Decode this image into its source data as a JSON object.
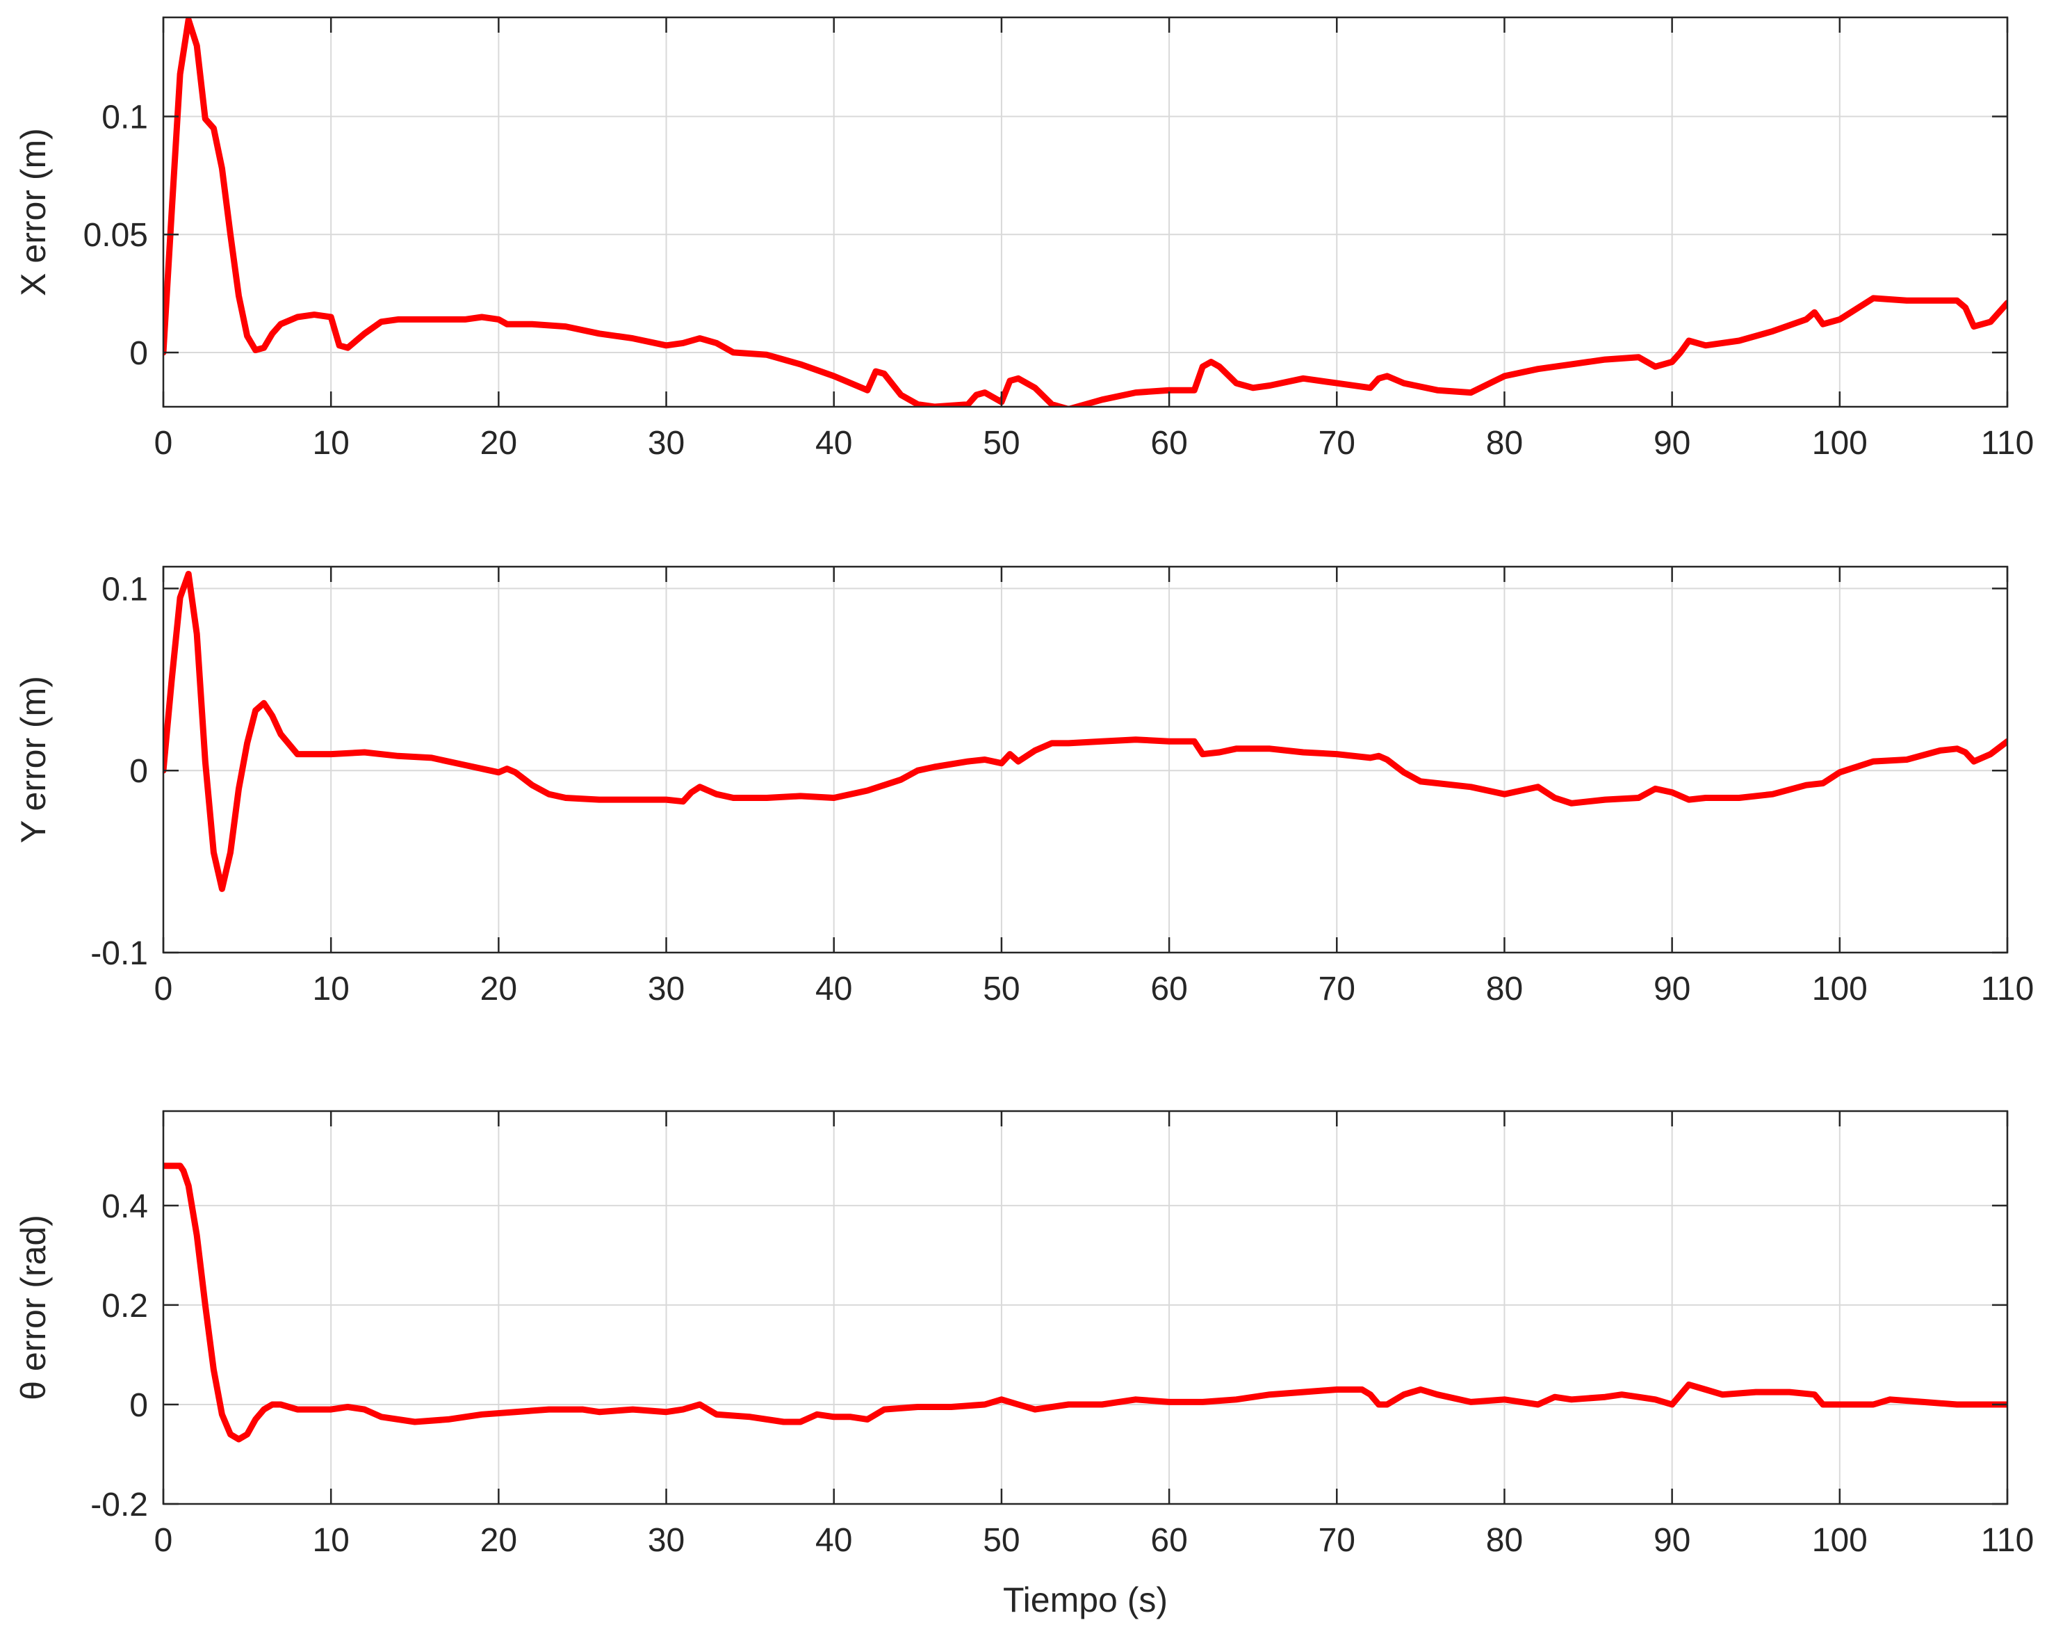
{
  "chart_data": [
    {
      "type": "line",
      "title": "",
      "xlabel": "",
      "ylabel": "X error (m)",
      "xlim": [
        0,
        110
      ],
      "ylim": [
        -0.023,
        0.142
      ],
      "xticks": [
        0,
        10,
        20,
        30,
        40,
        50,
        60,
        70,
        80,
        90,
        100,
        110
      ],
      "yticks": [
        0,
        0.05,
        0.1
      ],
      "ytick_labels": [
        "0",
        "0.05",
        "0.1"
      ],
      "grid": true,
      "color": "#ff0000",
      "series": [
        {
          "x": [
            0,
            0.5,
            1,
            1.5,
            2,
            2.5,
            3,
            3.5,
            4,
            4.5,
            5,
            5.5,
            6,
            6.5,
            7,
            8,
            9,
            10,
            10.5,
            11,
            12,
            13,
            14,
            16,
            18,
            19,
            20,
            20.5,
            22,
            24,
            26,
            28,
            30,
            31,
            32,
            33,
            34,
            36,
            38,
            40,
            42,
            42.5,
            43,
            44,
            45,
            46,
            48,
            48.5,
            49,
            50,
            50.5,
            51,
            52,
            53,
            54,
            56,
            58,
            60,
            61.5,
            62,
            62.5,
            63,
            64,
            65,
            66,
            68,
            70,
            72,
            72.5,
            73,
            74,
            76,
            78,
            80,
            82,
            84,
            86,
            88,
            89,
            90,
            90.5,
            91,
            92,
            94,
            96,
            98,
            98.5,
            99,
            100,
            102,
            104,
            106,
            107,
            107.5,
            108,
            109,
            110
          ],
          "y": [
            0,
            0.06,
            0.118,
            0.141,
            0.13,
            0.099,
            0.095,
            0.078,
            0.05,
            0.024,
            0.007,
            0.001,
            0.002,
            0.008,
            0.012,
            0.015,
            0.016,
            0.015,
            0.003,
            0.002,
            0.008,
            0.013,
            0.014,
            0.014,
            0.014,
            0.015,
            0.014,
            0.012,
            0.012,
            0.011,
            0.008,
            0.006,
            0.003,
            0.004,
            0.006,
            0.004,
            0.0,
            -0.001,
            -0.005,
            -0.01,
            -0.016,
            -0.008,
            -0.009,
            -0.018,
            -0.022,
            -0.023,
            -0.022,
            -0.018,
            -0.017,
            -0.021,
            -0.012,
            -0.011,
            -0.015,
            -0.022,
            -0.024,
            -0.02,
            -0.017,
            -0.016,
            -0.016,
            -0.006,
            -0.004,
            -0.006,
            -0.013,
            -0.015,
            -0.014,
            -0.011,
            -0.013,
            -0.015,
            -0.011,
            -0.01,
            -0.013,
            -0.016,
            -0.017,
            -0.01,
            -0.007,
            -0.005,
            -0.003,
            -0.002,
            -0.006,
            -0.004,
            0.0,
            0.005,
            0.003,
            0.005,
            0.009,
            0.014,
            0.017,
            0.012,
            0.014,
            0.023,
            0.022,
            0.022,
            0.022,
            0.019,
            0.011,
            0.013,
            0.021
          ]
        }
      ]
    },
    {
      "type": "line",
      "title": "",
      "xlabel": "",
      "ylabel": "Y error (m)",
      "xlim": [
        0,
        110
      ],
      "ylim": [
        -0.1,
        0.112
      ],
      "xticks": [
        0,
        10,
        20,
        30,
        40,
        50,
        60,
        70,
        80,
        90,
        100,
        110
      ],
      "yticks": [
        -0.1,
        0,
        0.1
      ],
      "ytick_labels": [
        "-0.1",
        "0",
        "0.1"
      ],
      "grid": true,
      "color": "#ff0000",
      "series": [
        {
          "x": [
            0,
            0.5,
            1,
            1.5,
            2,
            2.5,
            3,
            3.5,
            4,
            4.5,
            5,
            5.5,
            6,
            6.5,
            7,
            8,
            9,
            10,
            12,
            14,
            16,
            18,
            20,
            20.5,
            21,
            22,
            23,
            24,
            26,
            28,
            30,
            31,
            31.5,
            32,
            33,
            34,
            36,
            38,
            40,
            42,
            44,
            45,
            46,
            48,
            49,
            50,
            50.5,
            51,
            52,
            53,
            54,
            56,
            58,
            60,
            61.5,
            62,
            63,
            64,
            66,
            68,
            70,
            72,
            72.5,
            73,
            74,
            75,
            76,
            78,
            80,
            81,
            82,
            83,
            84,
            86,
            88,
            89,
            90,
            91,
            92,
            94,
            96,
            98,
            99,
            100,
            102,
            104,
            106,
            107,
            107.5,
            108,
            109,
            110
          ],
          "y": [
            0,
            0.05,
            0.095,
            0.108,
            0.075,
            0.005,
            -0.045,
            -0.065,
            -0.045,
            -0.01,
            0.015,
            0.033,
            0.037,
            0.03,
            0.02,
            0.009,
            0.009,
            0.009,
            0.01,
            0.008,
            0.007,
            0.003,
            -0.001,
            0.001,
            -0.001,
            -0.008,
            -0.013,
            -0.015,
            -0.016,
            -0.016,
            -0.016,
            -0.017,
            -0.012,
            -0.009,
            -0.013,
            -0.015,
            -0.015,
            -0.014,
            -0.015,
            -0.011,
            -0.005,
            0.0,
            0.002,
            0.005,
            0.006,
            0.004,
            0.009,
            0.005,
            0.011,
            0.015,
            0.015,
            0.016,
            0.017,
            0.016,
            0.016,
            0.009,
            0.01,
            0.012,
            0.012,
            0.01,
            0.009,
            0.007,
            0.008,
            0.006,
            -0.001,
            -0.006,
            -0.007,
            -0.009,
            -0.013,
            -0.011,
            -0.009,
            -0.015,
            -0.018,
            -0.016,
            -0.015,
            -0.01,
            -0.012,
            -0.016,
            -0.015,
            -0.015,
            -0.013,
            -0.008,
            -0.007,
            -0.001,
            0.005,
            0.006,
            0.011,
            0.012,
            0.01,
            0.005,
            0.009,
            0.016
          ]
        }
      ]
    },
    {
      "type": "line",
      "title": "",
      "xlabel": "Tiempo (s)",
      "ylabel": "θ error (rad)",
      "xlim": [
        0,
        110
      ],
      "ylim": [
        -0.2,
        0.59
      ],
      "xticks": [
        0,
        10,
        20,
        30,
        40,
        50,
        60,
        70,
        80,
        90,
        100,
        110
      ],
      "yticks": [
        -0.2,
        0,
        0.2,
        0.4
      ],
      "ytick_labels": [
        "-0.2",
        "0",
        "0.2",
        "0.4"
      ],
      "grid": true,
      "color": "#ff0000",
      "series": [
        {
          "x": [
            0,
            0.5,
            1,
            1.2,
            1.5,
            2,
            2.5,
            3,
            3.5,
            4,
            4.5,
            5,
            5.5,
            6,
            6.5,
            7,
            8,
            9,
            10,
            11,
            12,
            13,
            15,
            17,
            19,
            21,
            23,
            25,
            26,
            28,
            30,
            31,
            32,
            33,
            35,
            37,
            38,
            39,
            40,
            41,
            42,
            43,
            45,
            47,
            49,
            50,
            51,
            52,
            54,
            56,
            58,
            60,
            62,
            64,
            66,
            68,
            70,
            71.5,
            72,
            72.5,
            73,
            74,
            75,
            76,
            78,
            80,
            82,
            83,
            84,
            86,
            87,
            88,
            89,
            90,
            91,
            92,
            93,
            95,
            97,
            98.5,
            99,
            100,
            102,
            103,
            105,
            107,
            110
          ],
          "y": [
            0.48,
            0.48,
            0.48,
            0.47,
            0.44,
            0.34,
            0.2,
            0.07,
            -0.02,
            -0.06,
            -0.07,
            -0.06,
            -0.03,
            -0.01,
            0.0,
            0.0,
            -0.01,
            -0.01,
            -0.01,
            -0.005,
            -0.01,
            -0.025,
            -0.035,
            -0.03,
            -0.02,
            -0.015,
            -0.01,
            -0.01,
            -0.015,
            -0.01,
            -0.015,
            -0.01,
            0.0,
            -0.02,
            -0.025,
            -0.035,
            -0.035,
            -0.02,
            -0.025,
            -0.025,
            -0.03,
            -0.01,
            -0.005,
            -0.005,
            0.0,
            0.01,
            0.0,
            -0.01,
            0.0,
            0.0,
            0.01,
            0.005,
            0.005,
            0.01,
            0.02,
            0.025,
            0.03,
            0.03,
            0.02,
            0.0,
            0.0,
            0.02,
            0.03,
            0.02,
            0.005,
            0.01,
            0.0,
            0.015,
            0.01,
            0.015,
            0.02,
            0.015,
            0.01,
            0.0,
            0.04,
            0.03,
            0.02,
            0.025,
            0.025,
            0.02,
            0.0,
            0.0,
            0.0,
            0.01,
            0.005,
            0.0,
            0.0
          ]
        }
      ]
    }
  ]
}
